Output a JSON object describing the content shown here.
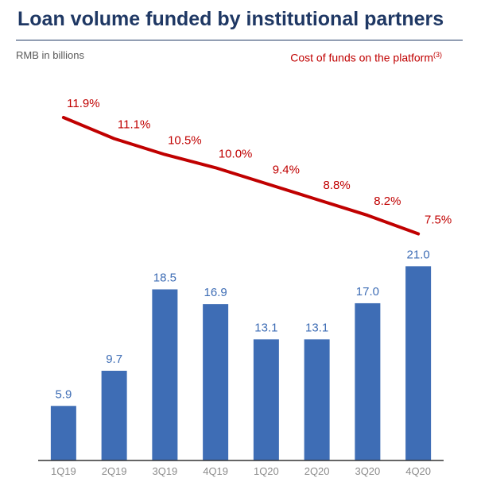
{
  "chart_data": {
    "type": "bar",
    "title": "Loan volume funded by institutional partners",
    "ylabel": "RMB in billions",
    "categories": [
      "1Q19",
      "2Q19",
      "3Q19",
      "4Q19",
      "1Q20",
      "2Q20",
      "3Q20",
      "4Q20"
    ],
    "series": [
      {
        "type": "bar",
        "values": [
          5.9,
          9.7,
          18.5,
          16.9,
          13.1,
          13.1,
          17.0,
          21.0
        ],
        "labels": [
          "5.9",
          "9.7",
          "18.5",
          "16.9",
          "13.1",
          "13.1",
          "17.0",
          "21.0"
        ],
        "color": "#3e6db5"
      },
      {
        "type": "line",
        "name": "Cost of funds on the platform",
        "footnote": "(3)",
        "values": [
          11.9,
          11.1,
          10.5,
          10.0,
          9.4,
          8.8,
          8.2,
          7.5
        ],
        "labels": [
          "11.9%",
          "11.1%",
          "10.5%",
          "10.0%",
          "9.4%",
          "8.8%",
          "8.2%",
          "7.5%"
        ],
        "color": "#c00000"
      }
    ],
    "grid": false,
    "legend": "top-right"
  }
}
